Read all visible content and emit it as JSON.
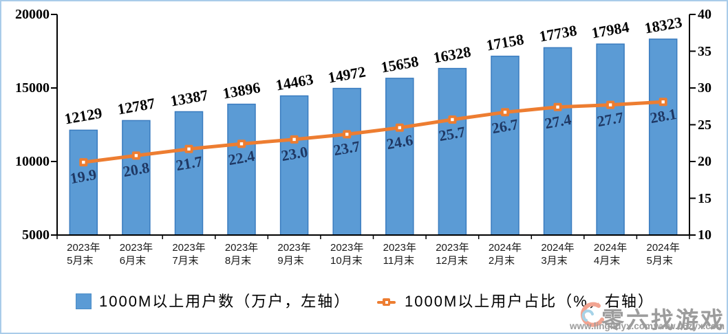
{
  "chart_data": {
    "type": "combo",
    "categories": [
      [
        "2023年",
        "5月末"
      ],
      [
        "2023年",
        "6月末"
      ],
      [
        "2023年",
        "7月末"
      ],
      [
        "2023年",
        "8月末"
      ],
      [
        "2023年",
        "9月末"
      ],
      [
        "2023年",
        "10月末"
      ],
      [
        "2023年",
        "11月末"
      ],
      [
        "2023年",
        "12月末"
      ],
      [
        "2024年",
        "2月末"
      ],
      [
        "2024年",
        "3月末"
      ],
      [
        "2024年",
        "4月末"
      ],
      [
        "2024年",
        "5月末"
      ]
    ],
    "series": [
      {
        "name": "1000M以上用户数（万户，左轴）",
        "type": "bar",
        "axis": "left",
        "values": [
          12129,
          12787,
          13387,
          13896,
          14463,
          14972,
          15658,
          16328,
          17158,
          17738,
          17984,
          18323
        ],
        "color": "#5B9BD5",
        "border_color": "#3A7CBF",
        "label_color": "#000000"
      },
      {
        "name": "1000M以上用户占比（%，右轴）",
        "type": "line",
        "axis": "right",
        "values": [
          19.9,
          20.8,
          21.7,
          22.4,
          23.0,
          23.7,
          24.6,
          25.7,
          26.7,
          27.4,
          27.7,
          28.1
        ],
        "color": "#ED7D31",
        "label_color": "#1F3864"
      }
    ],
    "left_axis": {
      "min": 5000,
      "max": 20000,
      "step": 5000,
      "ticks": [
        5000,
        10000,
        15000,
        20000
      ]
    },
    "right_axis": {
      "min": 10,
      "max": 40,
      "step": 5,
      "ticks": [
        10,
        15,
        20,
        25,
        30,
        35,
        40
      ]
    },
    "grid": false,
    "legend_position": "bottom",
    "title": ""
  },
  "legend": {
    "bar_label": "1000M以上用户数（万户，左轴）",
    "line_label": "1000M以上用户占比（%，右轴）"
  },
  "watermark": {
    "site_name": "零六找游戏",
    "url_1": "www.lingliuyx.com",
    "url_2": "www.06zyx.com"
  },
  "colors": {
    "frame": "#A9CCE9",
    "axis": "#000000",
    "bar_fill": "#5B9BD5",
    "bar_border": "#3A7CBF",
    "line": "#ED7D31",
    "line_label": "#1F3864",
    "watermark_gray": "#9C9C9C"
  }
}
